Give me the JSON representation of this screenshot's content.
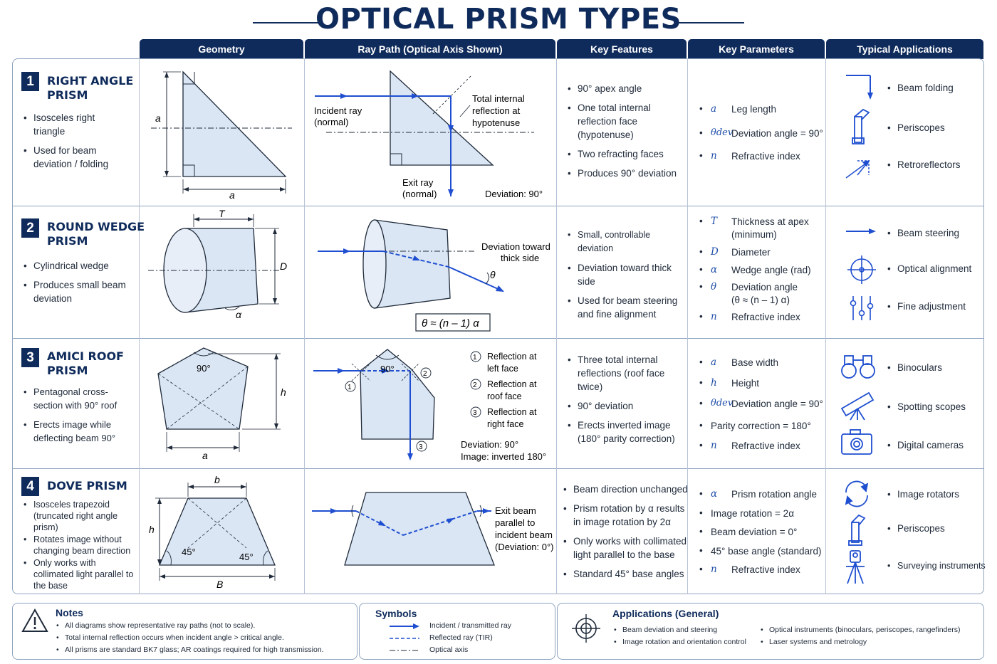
{
  "title": "OPTICAL PRISM TYPES",
  "headers": [
    "Geometry",
    "Ray Path (Optical Axis Shown)",
    "Key Features",
    "Key Parameters",
    "Typical Applications"
  ],
  "prisms": [
    {
      "num": "1",
      "name_l1": "RIGHT ANGLE",
      "name_l2": "PRISM",
      "desc": [
        "Isosceles right triangle",
        "Used for beam deviation / folding"
      ],
      "geom_labels": {
        "a_v": "a",
        "a_h": "a"
      },
      "ray_labels": {
        "incident": "Incident ray",
        "incident2": "(normal)",
        "tir": "Total internal",
        "tir2": "reflection at",
        "tir3": "hypotenuse",
        "exit": "Exit ray",
        "exit2": "(normal)",
        "dev": "Deviation: 90°"
      },
      "features": [
        "90° apex angle",
        "One total internal reflection face (hypotenuse)",
        "Two refracting faces",
        "Produces 90° deviation"
      ],
      "params": [
        {
          "sym": "a",
          "text": "Leg length"
        },
        {
          "sym": "θdev",
          "text": "Deviation angle = 90°"
        },
        {
          "sym": "n",
          "text": "Refractive index"
        }
      ],
      "apps": [
        "Beam folding",
        "Periscopes",
        "Retroreflectors"
      ],
      "app_icons": [
        "beam-fold-icon",
        "periscope-icon",
        "retroreflector-icon"
      ]
    },
    {
      "num": "2",
      "name_l1": "ROUND WEDGE",
      "name_l2": "PRISM",
      "desc": [
        "Cylindrical wedge",
        "Produces small beam deviation"
      ],
      "geom_labels": {
        "T": "T",
        "D": "D",
        "alpha": "α"
      },
      "ray_labels": {
        "dev": "Deviation toward",
        "dev2": "thick side",
        "theta": "θ",
        "formula": "θ ≈ (n – 1) α"
      },
      "features": [
        "Small, controllable deviation",
        "Deviation toward thick side",
        "Used for beam steering and fine alignment"
      ],
      "params": [
        {
          "sym": "T",
          "text": "Thickness at apex",
          "text2": "(minimum)"
        },
        {
          "sym": "D",
          "text": "Diameter"
        },
        {
          "sym": "α",
          "text": "Wedge angle (rad)"
        },
        {
          "sym": "θ",
          "text": "Deviation angle",
          "text2": "(θ ≈ (n – 1) α)"
        },
        {
          "sym": "n",
          "text": "Refractive index"
        }
      ],
      "apps": [
        "Beam steering",
        "Optical alignment",
        "Fine adjustment"
      ],
      "app_icons": [
        "arrow-right-icon",
        "crosshair-icon",
        "sliders-icon"
      ]
    },
    {
      "num": "3",
      "name_l1": "AMICI ROOF",
      "name_l2": "PRISM",
      "desc": [
        "Pentagonal cross-section with 90° roof",
        "Erects image while deflecting beam 90°"
      ],
      "geom_labels": {
        "angle": "90°",
        "h": "h",
        "a": "a"
      },
      "ray_labels": {
        "angle": "90°",
        "r1": "Reflection at",
        "r1b": "left face",
        "r2": "Reflection at",
        "r2b": "roof face",
        "r3": "Reflection at",
        "r3b": "right face",
        "dev": "Deviation: 90°",
        "img": "Image: inverted 180°",
        "n1": "1",
        "n2": "2",
        "n3": "3"
      },
      "features": [
        "Three total internal reflections (roof face twice)",
        "90° deviation",
        "Erects inverted image (180° parity correction)"
      ],
      "params": [
        {
          "sym": "a",
          "text": "Base width"
        },
        {
          "sym": "h",
          "text": "Height"
        },
        {
          "sym": "θdev",
          "text": "Deviation angle = 90°"
        },
        {
          "sym": "",
          "text": "Parity correction = 180°"
        },
        {
          "sym": "n",
          "text": "Refractive index"
        }
      ],
      "apps": [
        "Binoculars",
        "Spotting scopes",
        "Digital cameras"
      ],
      "app_icons": [
        "binoculars-icon",
        "telescope-icon",
        "camera-icon"
      ]
    },
    {
      "num": "4",
      "name_l1": "DOVE PRISM",
      "name_l2": "",
      "desc": [
        "Isosceles trapezoid (truncated right angle prism)",
        "Rotates image without changing beam direction",
        "Only works with collimated light parallel to the base"
      ],
      "geom_labels": {
        "b": "b",
        "h": "h",
        "a1": "45°",
        "a2": "45°",
        "B": "B"
      },
      "ray_labels": {
        "exit": "Exit beam",
        "exit2": "parallel to",
        "exit3": "incident beam",
        "exit4": "(Deviation: 0°)"
      },
      "features": [
        "Beam direction unchanged",
        "Prism rotation by α results in image rotation by 2α",
        "Only works with collimated light parallel to the base",
        "Standard 45° base angles"
      ],
      "params": [
        {
          "sym": "α",
          "text": "Prism rotation angle"
        },
        {
          "sym": "",
          "text": "Image rotation = 2α"
        },
        {
          "sym": "",
          "text": "Beam deviation = 0°"
        },
        {
          "sym": "",
          "text": "45° base angle (standard)"
        },
        {
          "sym": "n",
          "text": "Refractive index"
        }
      ],
      "apps": [
        "Image rotators",
        "Periscopes",
        "Surveying instruments"
      ],
      "app_icons": [
        "rotate-icon",
        "periscope-icon",
        "surveying-icon"
      ]
    }
  ],
  "notes": {
    "title": "Notes",
    "items": [
      "All diagrams show representative ray paths (not to scale).",
      "Total internal reflection occurs when incident angle > critical angle.",
      "All prisms are standard BK7 glass; AR coatings required for high transmission."
    ]
  },
  "symbols": {
    "title": "Symbols",
    "items": [
      "Incident / transmitted ray",
      "Reflected ray (TIR)",
      "Optical axis"
    ]
  },
  "applications": {
    "title": "Applications (General)",
    "items": [
      "Beam deviation and steering",
      "Image rotation and orientation control",
      "Optical instruments (binoculars, periscopes, rangefinders)",
      "Laser systems and metrology"
    ]
  },
  "colors": {
    "navy": "#0f2b5b",
    "ray": "#1f4fd0",
    "fill": "#dbe6f5",
    "border": "#8fa3bf"
  }
}
